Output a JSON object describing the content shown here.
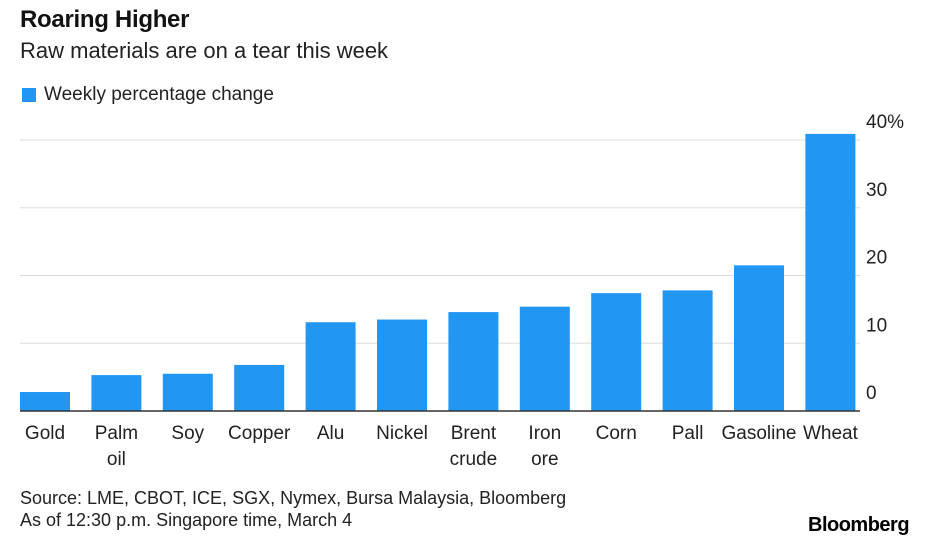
{
  "header": {
    "title": "Roaring Higher",
    "subtitle": "Raw materials are on a tear this week"
  },
  "colors": {
    "bar": "#2196f3",
    "grid": "#dddddd",
    "axis": "#333333"
  },
  "chart_data": {
    "type": "bar",
    "title": "Roaring Higher",
    "subtitle": "Raw materials are on a tear this week",
    "legend": [
      "Weekly percentage change"
    ],
    "legend_position": "top-left",
    "categories": [
      [
        "Gold"
      ],
      [
        "Palm",
        "oil"
      ],
      [
        "Soy"
      ],
      [
        "Copper"
      ],
      [
        "Alu"
      ],
      [
        "Nickel"
      ],
      [
        "Brent",
        "crude"
      ],
      [
        "Iron",
        "ore"
      ],
      [
        "Corn"
      ],
      [
        "Pall"
      ],
      [
        "Gasoline"
      ],
      [
        "Wheat"
      ]
    ],
    "series": [
      {
        "name": "Weekly percentage change",
        "values": [
          2.8,
          5.3,
          5.5,
          6.8,
          13.1,
          13.5,
          14.6,
          15.4,
          17.4,
          17.8,
          21.5,
          40.9
        ]
      }
    ],
    "ylim": [
      0,
      40
    ],
    "yticks": [
      0,
      10,
      20,
      30,
      40
    ],
    "ytick_labels": [
      "0",
      "10",
      "20",
      "30",
      "40%"
    ],
    "y_axis_side": "right",
    "grid": true,
    "xlabel": "",
    "ylabel": ""
  },
  "footer": {
    "source": "Source: LME, CBOT, ICE, SGX, Nymex, Bursa Malaysia, Bloomberg",
    "note": "As of 12:30 p.m. Singapore time, March 4"
  },
  "brand": "Bloomberg"
}
